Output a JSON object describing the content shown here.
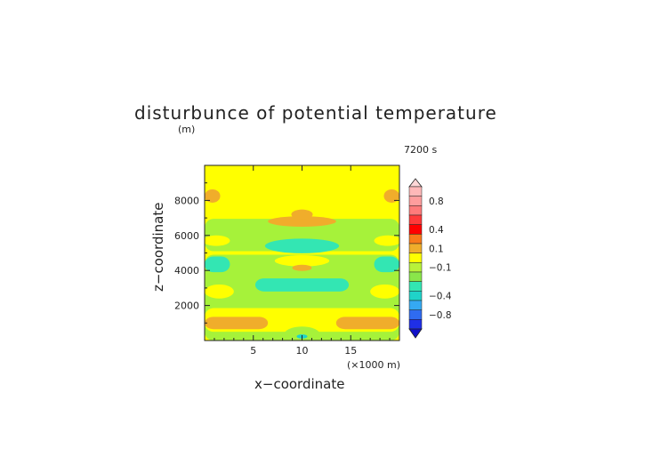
{
  "chart_data": {
    "type": "heatmap",
    "title": "disturbunce of potential temperature",
    "y_unit_label": "(m)",
    "time_label": "7200 s",
    "xlabel": "x−coordinate",
    "ylabel": "z−coordinate",
    "x_unit_label": "(×1000 m)",
    "xlim": [
      0,
      20
    ],
    "ylim": [
      0,
      10000
    ],
    "x_ticks": [
      {
        "v": 5,
        "label": "5"
      },
      {
        "v": 10,
        "label": "10"
      },
      {
        "v": 15,
        "label": "15"
      }
    ],
    "y_ticks": [
      {
        "v": 2000,
        "label": "2000"
      },
      {
        "v": 4000,
        "label": "4000"
      },
      {
        "v": 6000,
        "label": "6000"
      },
      {
        "v": 8000,
        "label": "8000"
      }
    ],
    "background_level": "yellow",
    "level_colors": {
      "light_orange": "#f5ca5a",
      "orange": "#f0ad2b",
      "yellow": "#ffff00",
      "lime": "#a6f23a",
      "green": "#8ae64a",
      "teal": "#33e6b3",
      "cyan": "#1fd3c9",
      "blue": "#2f6bf0"
    },
    "regions": [
      {
        "level": "lime",
        "shape": "rect",
        "x": [
          0,
          20
        ],
        "z": [
          5100,
          6950
        ]
      },
      {
        "level": "lime",
        "shape": "rect",
        "x": [
          0,
          20
        ],
        "z": [
          0,
          4900
        ]
      },
      {
        "level": "yellow",
        "shape": "ellipse",
        "cx": 1.2,
        "cz": 5700,
        "rx": 1.4,
        "rz": 300
      },
      {
        "level": "yellow",
        "shape": "ellipse",
        "cx": 18.8,
        "cz": 5700,
        "rx": 1.4,
        "rz": 300
      },
      {
        "level": "yellow",
        "shape": "ellipse",
        "cx": 10,
        "cz": 4550,
        "rx": 2.8,
        "rz": 320
      },
      {
        "level": "yellow",
        "shape": "rect",
        "x": [
          0,
          20
        ],
        "z": [
          500,
          1850
        ]
      },
      {
        "level": "yellow",
        "shape": "ellipse",
        "cx": 1.5,
        "cz": 2800,
        "rx": 1.5,
        "rz": 400
      },
      {
        "level": "yellow",
        "shape": "ellipse",
        "cx": 18.5,
        "cz": 2800,
        "rx": 1.5,
        "rz": 400
      },
      {
        "level": "orange",
        "shape": "ellipse",
        "cx": 0.8,
        "cz": 8250,
        "rx": 0.8,
        "rz": 380
      },
      {
        "level": "orange",
        "shape": "ellipse",
        "cx": 19.2,
        "cz": 8250,
        "rx": 0.8,
        "rz": 380
      },
      {
        "level": "orange",
        "shape": "ellipse",
        "cx": 10,
        "cz": 6800,
        "rx": 3.5,
        "rz": 300
      },
      {
        "level": "orange",
        "shape": "ellipse",
        "cx": 10,
        "cz": 7200,
        "rx": 1.1,
        "rz": 280
      },
      {
        "level": "orange",
        "shape": "ellipse",
        "cx": 10,
        "cz": 4150,
        "rx": 1.0,
        "rz": 180
      },
      {
        "level": "orange",
        "shape": "rect",
        "x": [
          0,
          6.5
        ],
        "z": [
          650,
          1350
        ]
      },
      {
        "level": "orange",
        "shape": "rect",
        "x": [
          13.5,
          20
        ],
        "z": [
          650,
          1350
        ]
      },
      {
        "level": "teal",
        "shape": "ellipse",
        "cx": 10,
        "cz": 5400,
        "rx": 3.8,
        "rz": 420
      },
      {
        "level": "teal",
        "shape": "rect",
        "x": [
          0,
          2.6
        ],
        "z": [
          3900,
          4800
        ]
      },
      {
        "level": "teal",
        "shape": "rect",
        "x": [
          17.4,
          20
        ],
        "z": [
          3900,
          4800
        ]
      },
      {
        "level": "teal",
        "shape": "rect",
        "x": [
          5.2,
          14.8
        ],
        "z": [
          2800,
          3550
        ]
      },
      {
        "level": "lime",
        "shape": "ellipse",
        "cx": 10,
        "cz": 300,
        "rx": 1.9,
        "rz": 500
      },
      {
        "level": "cyan",
        "shape": "ellipse",
        "cx": 10,
        "cz": 230,
        "rx": 0.55,
        "rz": 120
      }
    ],
    "colorbar": {
      "labels": [
        "0.8",
        "0.4",
        "0.1",
        "−0.1",
        "−0.4",
        "−0.8"
      ],
      "segments": [
        {
          "color": "#ffb8b8",
          "label_index": null
        },
        {
          "color": "#ff9d9d",
          "label_index": 0
        },
        {
          "color": "#ff7a7a",
          "label_index": null
        },
        {
          "color": "#ff3a3a",
          "label_index": null
        },
        {
          "color": "#ff0000",
          "label_index": 1
        },
        {
          "color": "#f97a1a",
          "label_index": null
        },
        {
          "color": "#f0ad2b",
          "label_index": 2
        },
        {
          "color": "#ffff00",
          "label_index": null
        },
        {
          "color": "#b8f23a",
          "label_index": 3
        },
        {
          "color": "#8ae64a",
          "label_index": null
        },
        {
          "color": "#33e6b3",
          "label_index": null
        },
        {
          "color": "#1fd3c9",
          "label_index": 4
        },
        {
          "color": "#35a9f2",
          "label_index": null
        },
        {
          "color": "#2f6bf0",
          "label_index": 5
        },
        {
          "color": "#1f2fe6",
          "label_index": null
        }
      ],
      "top_arrow_color": "#ffd6d6",
      "bottom_arrow_color": "#1010c8"
    }
  }
}
